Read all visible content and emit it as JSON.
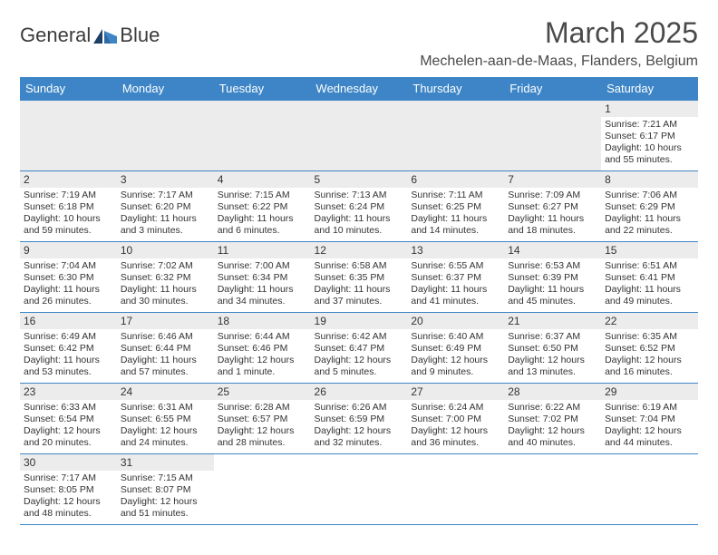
{
  "brand": {
    "part1": "General",
    "part2": "Blue"
  },
  "title": "March 2025",
  "subtitle": "Mechelen-aan-de-Maas, Flanders, Belgium",
  "colors": {
    "header_bg": "#3d85c6",
    "header_text": "#ffffff",
    "grid_line": "#3d85c6",
    "daynum_bg": "#ececec",
    "text": "#333333",
    "logo_dark": "#1d3f66",
    "logo_mid": "#2f6aa8",
    "logo_light": "#3d85c6"
  },
  "typography": {
    "title_fontsize": 32,
    "subtitle_fontsize": 16,
    "dayheader_fontsize": 13,
    "daynum_fontsize": 12,
    "body_fontsize": 10.5
  },
  "dayHeaders": [
    "Sunday",
    "Monday",
    "Tuesday",
    "Wednesday",
    "Thursday",
    "Friday",
    "Saturday"
  ],
  "weeks": [
    [
      null,
      null,
      null,
      null,
      null,
      null,
      {
        "n": "1",
        "sr": "7:21 AM",
        "ss": "6:17 PM",
        "dl": "10 hours and 55 minutes."
      }
    ],
    [
      {
        "n": "2",
        "sr": "7:19 AM",
        "ss": "6:18 PM",
        "dl": "10 hours and 59 minutes."
      },
      {
        "n": "3",
        "sr": "7:17 AM",
        "ss": "6:20 PM",
        "dl": "11 hours and 3 minutes."
      },
      {
        "n": "4",
        "sr": "7:15 AM",
        "ss": "6:22 PM",
        "dl": "11 hours and 6 minutes."
      },
      {
        "n": "5",
        "sr": "7:13 AM",
        "ss": "6:24 PM",
        "dl": "11 hours and 10 minutes."
      },
      {
        "n": "6",
        "sr": "7:11 AM",
        "ss": "6:25 PM",
        "dl": "11 hours and 14 minutes."
      },
      {
        "n": "7",
        "sr": "7:09 AM",
        "ss": "6:27 PM",
        "dl": "11 hours and 18 minutes."
      },
      {
        "n": "8",
        "sr": "7:06 AM",
        "ss": "6:29 PM",
        "dl": "11 hours and 22 minutes."
      }
    ],
    [
      {
        "n": "9",
        "sr": "7:04 AM",
        "ss": "6:30 PM",
        "dl": "11 hours and 26 minutes."
      },
      {
        "n": "10",
        "sr": "7:02 AM",
        "ss": "6:32 PM",
        "dl": "11 hours and 30 minutes."
      },
      {
        "n": "11",
        "sr": "7:00 AM",
        "ss": "6:34 PM",
        "dl": "11 hours and 34 minutes."
      },
      {
        "n": "12",
        "sr": "6:58 AM",
        "ss": "6:35 PM",
        "dl": "11 hours and 37 minutes."
      },
      {
        "n": "13",
        "sr": "6:55 AM",
        "ss": "6:37 PM",
        "dl": "11 hours and 41 minutes."
      },
      {
        "n": "14",
        "sr": "6:53 AM",
        "ss": "6:39 PM",
        "dl": "11 hours and 45 minutes."
      },
      {
        "n": "15",
        "sr": "6:51 AM",
        "ss": "6:41 PM",
        "dl": "11 hours and 49 minutes."
      }
    ],
    [
      {
        "n": "16",
        "sr": "6:49 AM",
        "ss": "6:42 PM",
        "dl": "11 hours and 53 minutes."
      },
      {
        "n": "17",
        "sr": "6:46 AM",
        "ss": "6:44 PM",
        "dl": "11 hours and 57 minutes."
      },
      {
        "n": "18",
        "sr": "6:44 AM",
        "ss": "6:46 PM",
        "dl": "12 hours and 1 minute."
      },
      {
        "n": "19",
        "sr": "6:42 AM",
        "ss": "6:47 PM",
        "dl": "12 hours and 5 minutes."
      },
      {
        "n": "20",
        "sr": "6:40 AM",
        "ss": "6:49 PM",
        "dl": "12 hours and 9 minutes."
      },
      {
        "n": "21",
        "sr": "6:37 AM",
        "ss": "6:50 PM",
        "dl": "12 hours and 13 minutes."
      },
      {
        "n": "22",
        "sr": "6:35 AM",
        "ss": "6:52 PM",
        "dl": "12 hours and 16 minutes."
      }
    ],
    [
      {
        "n": "23",
        "sr": "6:33 AM",
        "ss": "6:54 PM",
        "dl": "12 hours and 20 minutes."
      },
      {
        "n": "24",
        "sr": "6:31 AM",
        "ss": "6:55 PM",
        "dl": "12 hours and 24 minutes."
      },
      {
        "n": "25",
        "sr": "6:28 AM",
        "ss": "6:57 PM",
        "dl": "12 hours and 28 minutes."
      },
      {
        "n": "26",
        "sr": "6:26 AM",
        "ss": "6:59 PM",
        "dl": "12 hours and 32 minutes."
      },
      {
        "n": "27",
        "sr": "6:24 AM",
        "ss": "7:00 PM",
        "dl": "12 hours and 36 minutes."
      },
      {
        "n": "28",
        "sr": "6:22 AM",
        "ss": "7:02 PM",
        "dl": "12 hours and 40 minutes."
      },
      {
        "n": "29",
        "sr": "6:19 AM",
        "ss": "7:04 PM",
        "dl": "12 hours and 44 minutes."
      }
    ],
    [
      {
        "n": "30",
        "sr": "7:17 AM",
        "ss": "8:05 PM",
        "dl": "12 hours and 48 minutes."
      },
      {
        "n": "31",
        "sr": "7:15 AM",
        "ss": "8:07 PM",
        "dl": "12 hours and 51 minutes."
      },
      null,
      null,
      null,
      null,
      null
    ]
  ],
  "labels": {
    "sunrise": "Sunrise: ",
    "sunset": "Sunset: ",
    "daylight": "Daylight: "
  }
}
